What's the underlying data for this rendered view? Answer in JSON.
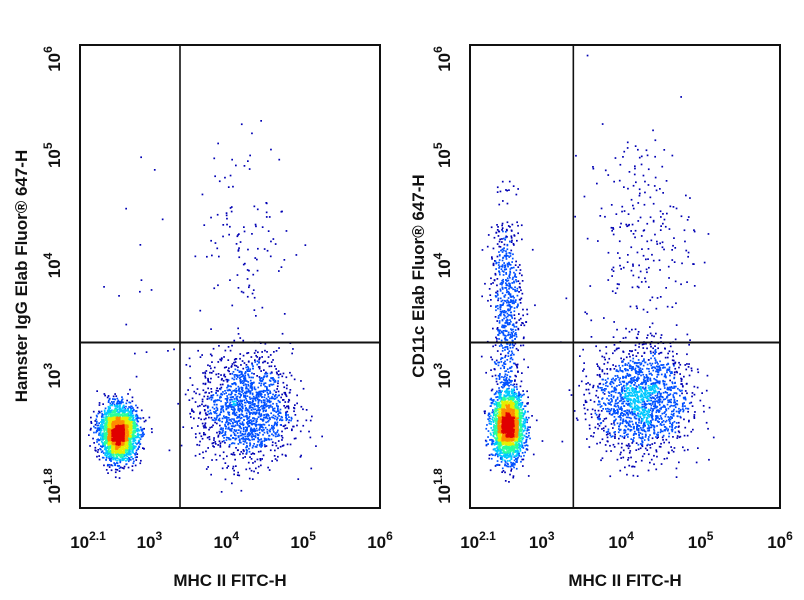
{
  "chart_data": [
    {
      "type": "scatter",
      "subtype": "flow-cytometry-density-dot-plot",
      "xlabel": "MHC II FITC-H",
      "ylabel": "Hamster IgG Elab Fluor® 647-H",
      "xscale": "log",
      "yscale": "log",
      "xlim": [
        125,
        1000000
      ],
      "ylim": [
        63,
        1000000
      ],
      "x_ticks": [
        {
          "value": 125,
          "base": "10",
          "exp": "2.1"
        },
        {
          "value": 1000,
          "base": "10",
          "exp": "3"
        },
        {
          "value": 10000,
          "base": "10",
          "exp": "4"
        },
        {
          "value": 100000,
          "base": "10",
          "exp": "5"
        },
        {
          "value": 1000000,
          "base": "10",
          "exp": "6"
        }
      ],
      "y_ticks": [
        {
          "value": 63,
          "base": "10",
          "exp": "1.8"
        },
        {
          "value": 1000,
          "base": "10",
          "exp": "3"
        },
        {
          "value": 10000,
          "base": "10",
          "exp": "4"
        },
        {
          "value": 100000,
          "base": "10",
          "exp": "5"
        },
        {
          "value": 1000000,
          "base": "10",
          "exp": "6"
        }
      ],
      "quadrant_gate": {
        "x": 2500,
        "y": 2000
      },
      "populations": [
        {
          "center": [
            400,
            300
          ],
          "spread": [
            0.12,
            0.12
          ],
          "points": 2600,
          "peak": true
        },
        {
          "center": [
            18000,
            500
          ],
          "spread": [
            0.3,
            0.25
          ],
          "points": 1500
        },
        {
          "center": [
            18000,
            20000
          ],
          "spread": [
            0.3,
            0.45
          ],
          "points": 110
        },
        {
          "center": [
            1200,
            8000
          ],
          "spread": [
            0.35,
            0.5
          ],
          "points": 14
        }
      ],
      "colormap": [
        "#0000b4",
        "#0050ff",
        "#00c8ff",
        "#28ff9c",
        "#e6f000",
        "#ff8c00",
        "#e00000"
      ]
    },
    {
      "type": "scatter",
      "subtype": "flow-cytometry-density-dot-plot",
      "xlabel": "MHC II FITC-H",
      "ylabel": "CD11c Elab Fluor® 647-H",
      "xscale": "log",
      "yscale": "log",
      "xlim": [
        125,
        1000000
      ],
      "ylim": [
        63,
        1000000
      ],
      "x_ticks": [
        {
          "value": 125,
          "base": "10",
          "exp": "2.1"
        },
        {
          "value": 1000,
          "base": "10",
          "exp": "3"
        },
        {
          "value": 10000,
          "base": "10",
          "exp": "4"
        },
        {
          "value": 100000,
          "base": "10",
          "exp": "5"
        },
        {
          "value": 1000000,
          "base": "10",
          "exp": "6"
        }
      ],
      "y_ticks": [
        {
          "value": 63,
          "base": "10",
          "exp": "1.8"
        },
        {
          "value": 1000,
          "base": "10",
          "exp": "3"
        },
        {
          "value": 10000,
          "base": "10",
          "exp": "4"
        },
        {
          "value": 100000,
          "base": "10",
          "exp": "5"
        },
        {
          "value": 1000000,
          "base": "10",
          "exp": "6"
        }
      ],
      "quadrant_gate": {
        "x": 2500,
        "y": 2000
      },
      "populations": [
        {
          "center": [
            380,
            350
          ],
          "spread": [
            0.1,
            0.15
          ],
          "points": 2400,
          "peak": true
        },
        {
          "center": [
            360,
            4000
          ],
          "spread": [
            0.1,
            0.45
          ],
          "points": 650
        },
        {
          "center": [
            18000,
            600
          ],
          "spread": [
            0.3,
            0.25
          ],
          "points": 1600
        },
        {
          "center": [
            17000,
            20000
          ],
          "spread": [
            0.33,
            0.45
          ],
          "points": 220
        }
      ],
      "colormap": [
        "#0000b4",
        "#0050ff",
        "#00c8ff",
        "#28ff9c",
        "#e6f000",
        "#ff8c00",
        "#e00000"
      ]
    }
  ]
}
